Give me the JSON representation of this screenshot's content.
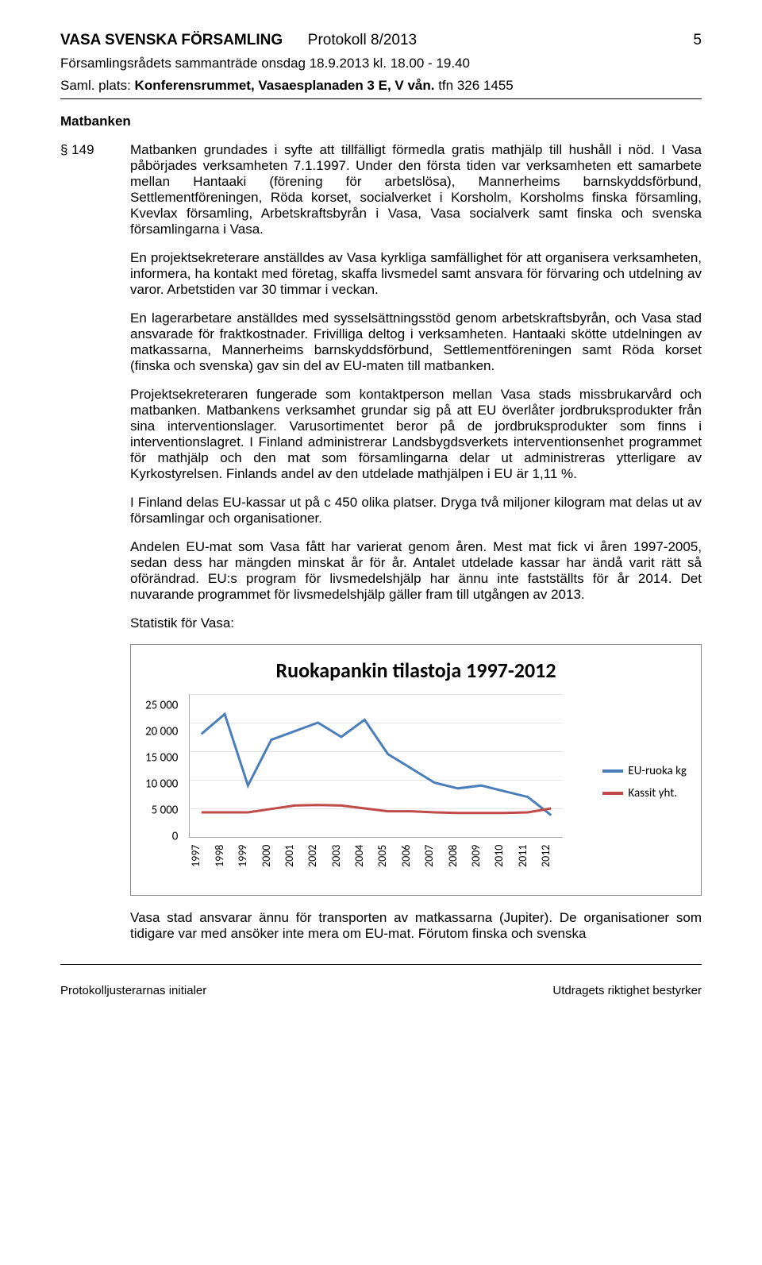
{
  "header": {
    "org": "VASA SVENSKA FÖRSAMLING",
    "protokoll": "Protokoll 8/2013",
    "page_num": "5",
    "meeting": "Församlingsrådets sammanträde onsdag 18.9.2013 kl. 18.00 - 19.40",
    "saml_prefix": "Saml. plats: ",
    "saml_place": "Konferensrummet, Vasaesplanaden 3 E, V vån.",
    "saml_tfn": " tfn 326 1455"
  },
  "section": {
    "title": "Matbanken",
    "number": "§ 149"
  },
  "paragraphs": {
    "p1": "Matbanken grundades i syfte att tillfälligt förmedla gratis mathjälp till hushåll i nöd. I Vasa påbörjades verksamheten 7.1.1997. Under den första tiden var verksamheten ett samarbete mellan Hantaaki (förening för arbetslösa), Mannerheims barnskyddsförbund, Settlementföreningen, Röda korset, socialverket i Korsholm, Korsholms finska församling, Kvevlax församling, Arbetskraftsbyrån i Vasa, Vasa socialverk samt finska och svenska församlingarna i Vasa.",
    "p2": "En projektsekreterare anställdes av Vasa kyrkliga samfällighet för att organisera verksamheten, informera, ha kontakt med företag, skaffa livsmedel samt ansvara för förvaring och utdelning av varor. Arbetstiden var 30 timmar i veckan.",
    "p3": "En lagerarbetare anställdes med sysselsättningsstöd genom arbetskraftsbyrån, och Vasa stad ansvarade för fraktkostnader. Frivilliga deltog i verksamheten. Hantaaki skötte utdelningen av matkassarna, Mannerheims barnskyddsförbund, Settlementföreningen samt Röda korset (finska och svenska) gav sin del av EU-maten till matbanken.",
    "p4": "Projektsekreteraren fungerade som kontaktperson mellan Vasa stads missbrukarvård och matbanken. Matbankens verksamhet grundar sig på att EU överlåter jordbruksprodukter från sina interventionslager. Varusortimentet beror på de jordbruksprodukter som finns i interventionslagret. I Finland administrerar Landsbygdsverkets interventionsenhet programmet för mathjälp och den mat som församlingarna delar ut administreras ytterligare av Kyrkostyrelsen. Finlands andel av den utdelade mathjälpen i EU är 1,11 %.",
    "p5": "I Finland delas EU-kassar ut på c 450 olika platser. Dryga två miljoner kilogram mat delas ut av församlingar och organisationer.",
    "p6": "Andelen EU-mat som Vasa fått har varierat genom åren. Mest mat fick vi åren 1997-2005, sedan dess har mängden minskat år för år. Antalet utdelade kassar har ändå varit rätt så oförändrad. EU:s program för livsmedelshjälp har ännu inte fastställts för år 2014. Det nuvarande programmet för livsmedelshjälp gäller fram till utgången av 2013.",
    "stats_label": "Statistik för Vasa:",
    "p_after_chart": "Vasa stad ansvarar ännu för transporten av matkassarna (Jupiter). De organisationer som tidigare var med ansöker inte mera om EU-mat. Förutom finska och svenska"
  },
  "chart": {
    "type": "line",
    "title": "Ruokapankin tilastoja 1997-2012",
    "title_fontsize": 26,
    "background_color": "#ffffff",
    "grid_color": "#e6e6e6",
    "axis_color": "#aaaaaa",
    "label_fontsize": 15,
    "xtick_fontsize": 14,
    "ylim": [
      0,
      25000
    ],
    "ytick_step": 5000,
    "ytick_labels": [
      "25 000",
      "20 000",
      "15 000",
      "10 000",
      "5 000",
      "0"
    ],
    "categories": [
      "1997",
      "1998",
      "1999",
      "2000",
      "2001",
      "2002",
      "2003",
      "2004",
      "2005",
      "2006",
      "2007",
      "2008",
      "2009",
      "2010",
      "2011",
      "2012"
    ],
    "series": [
      {
        "name": "EU-ruoka kg",
        "color": "#4a7ebb",
        "line_width": 3,
        "values": [
          18000,
          21500,
          9000,
          17000,
          18500,
          20000,
          17500,
          20500,
          14500,
          12000,
          9500,
          8500,
          9000,
          8000,
          7000,
          3800
        ]
      },
      {
        "name": "Kassit yht.",
        "color": "#be4b48",
        "line_width": 3,
        "values": [
          4300,
          4300,
          4300,
          4900,
          5500,
          5600,
          5500,
          5000,
          4500,
          4500,
          4300,
          4200,
          4200,
          4200,
          4300,
          5000
        ]
      }
    ],
    "legend_position": "right"
  },
  "footer": {
    "left": "Protokolljusterarnas initialer",
    "right": "Utdragets riktighet bestyrker"
  }
}
